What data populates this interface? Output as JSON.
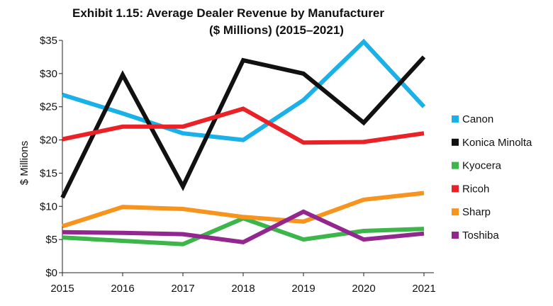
{
  "chart_data": {
    "type": "line",
    "title": "Exhibit 1.15: Average Dealer Revenue by Manufacturer",
    "subtitle": "($ Millions) (2015–2021)",
    "ylabel": "$ Millions",
    "xlabel": "",
    "x": [
      "2015",
      "2016",
      "2017",
      "2018",
      "2019",
      "2020",
      "2021"
    ],
    "ylim": [
      0,
      35
    ],
    "yticks": [
      "$0",
      "$5",
      "$10",
      "$15",
      "$20",
      "$25",
      "$30",
      "$35"
    ],
    "legend_position": "right",
    "grid": false,
    "series": [
      {
        "name": "Canon",
        "color": "#1ab0e8",
        "values": [
          26.8,
          24.0,
          21.0,
          20.0,
          26.0,
          34.8,
          25.0
        ]
      },
      {
        "name": "Konica Minolta",
        "color": "#111111",
        "values": [
          11.3,
          29.8,
          13.0,
          32.0,
          30.0,
          22.6,
          32.5
        ]
      },
      {
        "name": "Kyocera",
        "color": "#3cb54a",
        "values": [
          5.3,
          4.8,
          4.3,
          8.2,
          5.0,
          6.3,
          6.6
        ]
      },
      {
        "name": "Ricoh",
        "color": "#ea2127",
        "values": [
          20.1,
          22.0,
          22.0,
          24.7,
          19.6,
          19.7,
          21.0
        ]
      },
      {
        "name": "Sharp",
        "color": "#f7941d",
        "values": [
          7.0,
          9.9,
          9.6,
          8.4,
          7.7,
          11.0,
          12.0
        ]
      },
      {
        "name": "Toshiba",
        "color": "#92278f",
        "values": [
          6.1,
          6.0,
          5.8,
          4.6,
          9.2,
          5.0,
          5.9
        ]
      }
    ]
  }
}
